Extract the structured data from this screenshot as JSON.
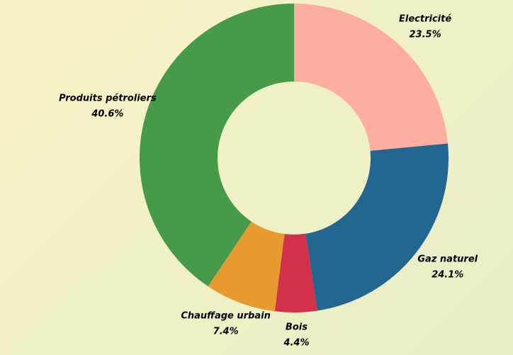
{
  "chart_data": {
    "type": "donut",
    "categories": [
      "Electricité",
      "Gaz naturel",
      "Bois",
      "Chauffage urbain",
      "Produits pétroliers"
    ],
    "values": [
      23.5,
      24.1,
      4.4,
      7.4,
      40.6
    ],
    "value_labels": [
      "23.5%",
      "24.1%",
      "4.4%",
      "7.4%",
      "40.6%"
    ],
    "colors": [
      "#fdaea0",
      "#236690",
      "#d3304a",
      "#e89a2e",
      "#469a4a"
    ]
  }
}
